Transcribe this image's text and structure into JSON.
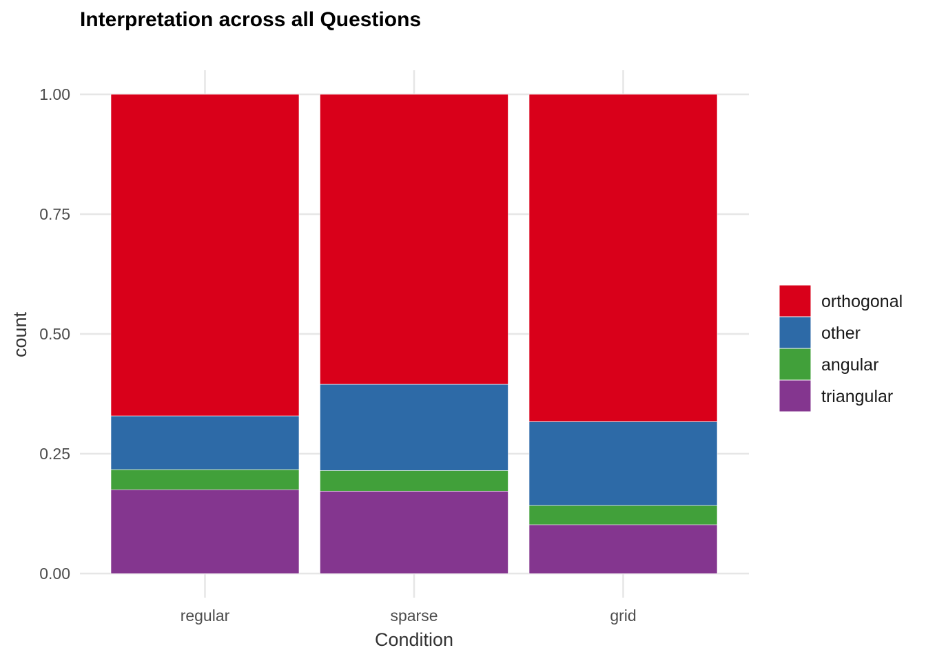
{
  "chart_data": {
    "type": "bar",
    "stacked": true,
    "title": "Interpretation across all Questions",
    "xlabel": "Condition",
    "ylabel": "count",
    "categories": [
      "regular",
      "sparse",
      "grid"
    ],
    "ylim": [
      0,
      1
    ],
    "yticks": [
      "0.00",
      "0.25",
      "0.50",
      "0.75",
      "1.00"
    ],
    "grid": true,
    "legend_position": "right",
    "series": [
      {
        "name": "triangular",
        "color": "#84368F",
        "values": [
          0.175,
          0.172,
          0.102
        ]
      },
      {
        "name": "angular",
        "color": "#41A03A",
        "values": [
          0.042,
          0.043,
          0.04
        ]
      },
      {
        "name": "other",
        "color": "#2D6AA7",
        "values": [
          0.112,
          0.18,
          0.175
        ]
      },
      {
        "name": "orthogonal",
        "color": "#D9001A",
        "values": [
          0.671,
          0.605,
          0.683
        ]
      }
    ],
    "legend_order": [
      "orthogonal",
      "other",
      "angular",
      "triangular"
    ]
  }
}
